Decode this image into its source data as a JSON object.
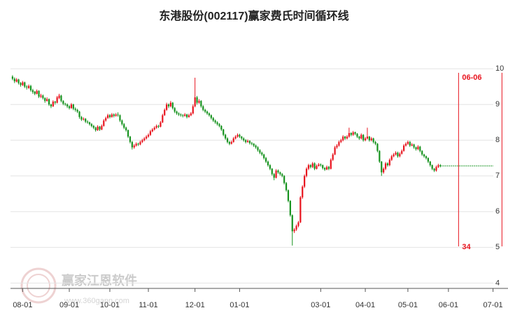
{
  "chart_data": {
    "type": "candlestick",
    "title": "东港股份(002117)赢家费氏时间循环线",
    "watermark": "赢家江恩软件",
    "watermark_url": "www.360gann.com",
    "up_color": "#e8141e",
    "down_color": "#16921e",
    "xlim": [
      -1,
      243
    ],
    "ylim": [
      3.85,
      10.75
    ],
    "yticks": [
      4,
      5,
      6,
      7,
      8,
      9,
      10
    ],
    "grid": true,
    "xticks": [
      {
        "value": 5,
        "label": "08-01"
      },
      {
        "value": 28,
        "label": "09-01"
      },
      {
        "value": 48,
        "label": "10-01"
      },
      {
        "value": 67,
        "label": "11-01"
      },
      {
        "value": 90,
        "label": "12-01"
      },
      {
        "value": 112,
        "label": "01-01"
      },
      {
        "value": 152,
        "label": "03-01"
      },
      {
        "value": 174,
        "label": "04-01"
      },
      {
        "value": 195,
        "label": "05-01"
      },
      {
        "value": 215,
        "label": "06-01"
      },
      {
        "value": 237,
        "label": "07-01"
      }
    ],
    "last_price_line": {
      "value": 7.28,
      "color": "#16921e"
    },
    "annotations": [
      {
        "x": 220,
        "label": "06-06",
        "count": "34",
        "color": "#e8141e"
      },
      {
        "x": 241.4,
        "color": "#e8141e"
      }
    ],
    "ohlc": [
      [
        9.78,
        9.82,
        9.68,
        9.72
      ],
      [
        9.72,
        9.76,
        9.6,
        9.65
      ],
      [
        9.64,
        9.74,
        9.62,
        9.7
      ],
      [
        9.7,
        9.72,
        9.56,
        9.6
      ],
      [
        9.6,
        9.63,
        9.5,
        9.55
      ],
      [
        9.54,
        9.66,
        9.52,
        9.62
      ],
      [
        9.62,
        9.64,
        9.46,
        9.5
      ],
      [
        9.5,
        9.54,
        9.42,
        9.48
      ],
      [
        9.46,
        9.56,
        9.44,
        9.52
      ],
      [
        9.52,
        9.55,
        9.36,
        9.4
      ],
      [
        9.4,
        9.44,
        9.3,
        9.35
      ],
      [
        9.36,
        9.38,
        9.26,
        9.3
      ],
      [
        9.3,
        9.42,
        9.28,
        9.38
      ],
      [
        9.38,
        9.4,
        9.18,
        9.22
      ],
      [
        9.22,
        9.3,
        9.18,
        9.25
      ],
      [
        9.25,
        9.28,
        9.14,
        9.18
      ],
      [
        9.18,
        9.2,
        9.05,
        9.1
      ],
      [
        9.1,
        9.2,
        9.08,
        9.15
      ],
      [
        9.15,
        9.17,
        8.96,
        9.0
      ],
      [
        9.0,
        9.02,
        8.9,
        8.95
      ],
      [
        8.95,
        9.12,
        8.93,
        9.08
      ],
      [
        9.08,
        9.1,
        9.0,
        9.05
      ],
      [
        9.05,
        9.24,
        9.03,
        9.2
      ],
      [
        9.18,
        9.3,
        9.15,
        9.25
      ],
      [
        9.25,
        9.27,
        9.06,
        9.1
      ],
      [
        9.1,
        9.12,
        8.98,
        9.02
      ],
      [
        9.02,
        9.05,
        8.96,
        9.0
      ],
      [
        9.0,
        9.03,
        8.9,
        8.95
      ],
      [
        8.95,
        8.98,
        8.86,
        8.9
      ],
      [
        8.9,
        9.04,
        8.88,
        9.0
      ],
      [
        9.0,
        9.02,
        8.84,
        8.88
      ],
      [
        8.88,
        8.92,
        8.8,
        8.85
      ],
      [
        8.85,
        8.88,
        8.76,
        8.8
      ],
      [
        8.8,
        8.82,
        8.6,
        8.65
      ],
      [
        8.65,
        8.68,
        8.54,
        8.58
      ],
      [
        8.58,
        8.64,
        8.55,
        8.6
      ],
      [
        8.6,
        8.62,
        8.48,
        8.52
      ],
      [
        8.52,
        8.56,
        8.46,
        8.5
      ],
      [
        8.5,
        8.52,
        8.41,
        8.45
      ],
      [
        8.45,
        8.48,
        8.36,
        8.4
      ],
      [
        8.4,
        8.43,
        8.31,
        8.35
      ],
      [
        8.35,
        8.38,
        8.24,
        8.28
      ],
      [
        8.28,
        8.42,
        8.26,
        8.38
      ],
      [
        8.38,
        8.4,
        8.26,
        8.3
      ],
      [
        8.3,
        8.44,
        8.28,
        8.4
      ],
      [
        8.4,
        8.59,
        8.38,
        8.55
      ],
      [
        8.55,
        8.66,
        8.52,
        8.62
      ],
      [
        8.62,
        8.74,
        8.6,
        8.7
      ],
      [
        8.7,
        8.73,
        8.61,
        8.65
      ],
      [
        8.65,
        8.76,
        8.63,
        8.72
      ],
      [
        8.72,
        8.75,
        8.64,
        8.68
      ],
      [
        8.68,
        8.76,
        8.66,
        8.72
      ],
      [
        8.72,
        8.78,
        8.66,
        8.7
      ],
      [
        8.7,
        8.72,
        8.51,
        8.55
      ],
      [
        8.55,
        8.58,
        8.41,
        8.45
      ],
      [
        8.45,
        8.48,
        8.31,
        8.35
      ],
      [
        8.35,
        8.38,
        8.24,
        8.28
      ],
      [
        8.28,
        8.3,
        8.06,
        8.1
      ],
      [
        8.1,
        8.12,
        7.91,
        7.95
      ],
      [
        7.95,
        7.98,
        7.74,
        7.8
      ],
      [
        7.8,
        7.89,
        7.76,
        7.85
      ],
      [
        7.85,
        7.94,
        7.82,
        7.9
      ],
      [
        7.9,
        7.93,
        7.84,
        7.88
      ],
      [
        7.88,
        7.99,
        7.86,
        7.95
      ],
      [
        7.95,
        8.04,
        7.92,
        8.0
      ],
      [
        8.0,
        8.09,
        7.97,
        8.05
      ],
      [
        8.05,
        8.14,
        8.02,
        8.1
      ],
      [
        8.1,
        8.19,
        8.07,
        8.15
      ],
      [
        8.15,
        8.29,
        8.12,
        8.25
      ],
      [
        8.25,
        8.34,
        8.22,
        8.3
      ],
      [
        8.3,
        8.39,
        8.27,
        8.35
      ],
      [
        8.35,
        8.44,
        8.32,
        8.4
      ],
      [
        8.4,
        8.43,
        8.34,
        8.38
      ],
      [
        8.38,
        8.54,
        8.36,
        8.5
      ],
      [
        8.5,
        8.74,
        8.48,
        8.7
      ],
      [
        8.7,
        8.89,
        8.68,
        8.85
      ],
      [
        8.85,
        9.05,
        8.82,
        9.0
      ],
      [
        9.0,
        9.03,
        8.9,
        8.95
      ],
      [
        8.95,
        9.1,
        8.92,
        9.05
      ],
      [
        9.05,
        9.07,
        8.86,
        8.9
      ],
      [
        8.9,
        8.93,
        8.76,
        8.8
      ],
      [
        8.8,
        8.83,
        8.71,
        8.75
      ],
      [
        8.75,
        8.78,
        8.68,
        8.72
      ],
      [
        8.72,
        8.75,
        8.66,
        8.7
      ],
      [
        8.7,
        8.73,
        8.64,
        8.68
      ],
      [
        8.68,
        8.76,
        8.66,
        8.72
      ],
      [
        8.72,
        8.74,
        8.61,
        8.65
      ],
      [
        8.65,
        8.74,
        8.63,
        8.7
      ],
      [
        8.7,
        8.79,
        8.67,
        8.75
      ],
      [
        8.75,
        9.0,
        8.72,
        8.95
      ],
      [
        8.95,
        9.75,
        8.92,
        9.2
      ],
      [
        9.2,
        9.24,
        9.0,
        9.05
      ],
      [
        9.05,
        9.15,
        9.02,
        9.1
      ],
      [
        9.1,
        9.12,
        8.91,
        8.95
      ],
      [
        8.95,
        8.98,
        8.81,
        8.85
      ],
      [
        8.85,
        8.88,
        8.76,
        8.8
      ],
      [
        8.8,
        8.83,
        8.71,
        8.75
      ],
      [
        8.75,
        8.78,
        8.66,
        8.7
      ],
      [
        8.7,
        8.72,
        8.58,
        8.62
      ],
      [
        8.62,
        8.65,
        8.51,
        8.55
      ],
      [
        8.55,
        8.58,
        8.46,
        8.5
      ],
      [
        8.5,
        8.53,
        8.41,
        8.45
      ],
      [
        8.45,
        8.48,
        8.36,
        8.4
      ],
      [
        8.4,
        8.42,
        8.26,
        8.3
      ],
      [
        8.3,
        8.32,
        8.11,
        8.15
      ],
      [
        8.15,
        8.18,
        8.01,
        8.05
      ],
      [
        8.05,
        8.08,
        7.91,
        7.95
      ],
      [
        7.95,
        7.98,
        7.86,
        7.9
      ],
      [
        7.9,
        7.99,
        7.88,
        7.95
      ],
      [
        7.95,
        8.09,
        7.93,
        8.05
      ],
      [
        8.05,
        8.14,
        8.02,
        8.1
      ],
      [
        8.1,
        8.19,
        8.07,
        8.15
      ],
      [
        8.15,
        8.18,
        8.06,
        8.1
      ],
      [
        8.1,
        8.12,
        8.01,
        8.05
      ],
      [
        8.05,
        8.08,
        7.96,
        8.0
      ],
      [
        8.0,
        8.03,
        7.91,
        7.95
      ],
      [
        7.95,
        8.02,
        7.93,
        7.98
      ],
      [
        7.98,
        8.0,
        7.88,
        7.92
      ],
      [
        7.92,
        7.95,
        7.86,
        7.9
      ],
      [
        7.9,
        7.92,
        7.81,
        7.85
      ],
      [
        7.85,
        7.88,
        7.76,
        7.8
      ],
      [
        7.8,
        7.83,
        7.68,
        7.72
      ],
      [
        7.72,
        7.75,
        7.61,
        7.65
      ],
      [
        7.65,
        7.68,
        7.56,
        7.6
      ],
      [
        7.6,
        7.62,
        7.46,
        7.5
      ],
      [
        7.5,
        7.53,
        7.36,
        7.4
      ],
      [
        7.4,
        7.43,
        7.26,
        7.3
      ],
      [
        7.3,
        7.33,
        7.16,
        7.2
      ],
      [
        7.2,
        7.22,
        7.01,
        7.05
      ],
      [
        7.05,
        7.08,
        6.88,
        6.95
      ],
      [
        6.95,
        7.19,
        6.93,
        7.15
      ],
      [
        7.15,
        7.18,
        7.06,
        7.1
      ],
      [
        7.1,
        7.12,
        7.01,
        7.05
      ],
      [
        7.05,
        7.08,
        6.96,
        7.0
      ],
      [
        7.0,
        7.02,
        6.76,
        6.8
      ],
      [
        6.8,
        6.83,
        6.56,
        6.6
      ],
      [
        6.6,
        6.62,
        6.26,
        6.3
      ],
      [
        6.3,
        6.32,
        5.86,
        5.9
      ],
      [
        5.9,
        5.92,
        5.05,
        5.45
      ],
      [
        5.45,
        5.54,
        5.4,
        5.5
      ],
      [
        5.5,
        5.64,
        5.46,
        5.6
      ],
      [
        5.6,
        5.74,
        5.56,
        5.7
      ],
      [
        5.7,
        6.44,
        5.68,
        6.4
      ],
      [
        6.4,
        6.74,
        6.36,
        6.7
      ],
      [
        6.7,
        7.04,
        6.66,
        7.0
      ],
      [
        7.0,
        7.24,
        6.96,
        7.2
      ],
      [
        7.2,
        7.34,
        7.16,
        7.3
      ],
      [
        7.3,
        7.33,
        7.21,
        7.25
      ],
      [
        7.25,
        7.39,
        7.22,
        7.35
      ],
      [
        7.35,
        7.38,
        7.16,
        7.2
      ],
      [
        7.2,
        7.32,
        7.18,
        7.28
      ],
      [
        7.28,
        7.36,
        7.26,
        7.32
      ],
      [
        7.32,
        7.35,
        7.26,
        7.3
      ],
      [
        7.3,
        7.32,
        7.18,
        7.22
      ],
      [
        7.22,
        7.25,
        7.14,
        7.18
      ],
      [
        7.18,
        7.29,
        7.16,
        7.25
      ],
      [
        7.25,
        7.28,
        7.16,
        7.2
      ],
      [
        7.2,
        7.49,
        7.18,
        7.45
      ],
      [
        7.45,
        7.64,
        7.42,
        7.6
      ],
      [
        7.6,
        7.84,
        7.58,
        7.8
      ],
      [
        7.8,
        7.89,
        7.76,
        7.85
      ],
      [
        7.85,
        7.99,
        7.82,
        7.95
      ],
      [
        7.95,
        8.04,
        7.92,
        8.0
      ],
      [
        8.0,
        8.14,
        7.97,
        8.1
      ],
      [
        8.1,
        8.12,
        8.01,
        8.05
      ],
      [
        8.05,
        8.14,
        8.02,
        8.1
      ],
      [
        8.1,
        8.35,
        8.07,
        8.2
      ],
      [
        8.2,
        8.22,
        8.11,
        8.15
      ],
      [
        8.15,
        8.26,
        8.12,
        8.22
      ],
      [
        8.22,
        8.24,
        8.14,
        8.18
      ],
      [
        8.18,
        8.2,
        8.06,
        8.1
      ],
      [
        8.1,
        8.12,
        8.01,
        8.05
      ],
      [
        8.05,
        8.19,
        8.02,
        8.15
      ],
      [
        8.15,
        8.17,
        7.96,
        8.0
      ],
      [
        8.0,
        8.09,
        7.97,
        8.05
      ],
      [
        8.05,
        8.35,
        8.02,
        8.1
      ],
      [
        8.1,
        8.12,
        7.96,
        8.0
      ],
      [
        8.0,
        8.09,
        7.97,
        8.05
      ],
      [
        8.05,
        8.07,
        7.91,
        7.95
      ],
      [
        7.95,
        7.98,
        7.86,
        7.9
      ],
      [
        7.9,
        7.92,
        7.66,
        7.7
      ],
      [
        7.7,
        7.72,
        7.36,
        7.4
      ],
      [
        7.4,
        7.42,
        7.0,
        7.1
      ],
      [
        7.1,
        7.24,
        7.06,
        7.2
      ],
      [
        7.2,
        7.39,
        7.16,
        7.35
      ],
      [
        7.35,
        7.38,
        7.26,
        7.3
      ],
      [
        7.3,
        7.49,
        7.27,
        7.45
      ],
      [
        7.45,
        7.59,
        7.42,
        7.55
      ],
      [
        7.55,
        7.64,
        7.52,
        7.6
      ],
      [
        7.6,
        7.69,
        7.57,
        7.65
      ],
      [
        7.65,
        7.68,
        7.51,
        7.55
      ],
      [
        7.55,
        7.66,
        7.52,
        7.62
      ],
      [
        7.62,
        7.74,
        7.6,
        7.7
      ],
      [
        7.7,
        7.89,
        7.68,
        7.85
      ],
      [
        7.85,
        7.94,
        7.82,
        7.9
      ],
      [
        7.9,
        7.99,
        7.87,
        7.95
      ],
      [
        7.95,
        7.98,
        7.81,
        7.85
      ],
      [
        7.85,
        7.92,
        7.83,
        7.88
      ],
      [
        7.88,
        7.9,
        7.76,
        7.8
      ],
      [
        7.8,
        7.82,
        7.71,
        7.75
      ],
      [
        7.75,
        7.86,
        7.72,
        7.82
      ],
      [
        7.82,
        7.84,
        7.66,
        7.7
      ],
      [
        7.7,
        7.72,
        7.56,
        7.6
      ],
      [
        7.6,
        7.62,
        7.51,
        7.55
      ],
      [
        7.55,
        7.57,
        7.46,
        7.5
      ],
      [
        7.5,
        7.52,
        7.36,
        7.4
      ],
      [
        7.4,
        7.42,
        7.26,
        7.3
      ],
      [
        7.3,
        7.32,
        7.16,
        7.2
      ],
      [
        7.2,
        7.22,
        7.11,
        7.15
      ],
      [
        7.15,
        7.29,
        7.12,
        7.25
      ],
      [
        7.25,
        7.34,
        7.22,
        7.3
      ],
      [
        7.3,
        7.33,
        7.24,
        7.28
      ]
    ]
  }
}
